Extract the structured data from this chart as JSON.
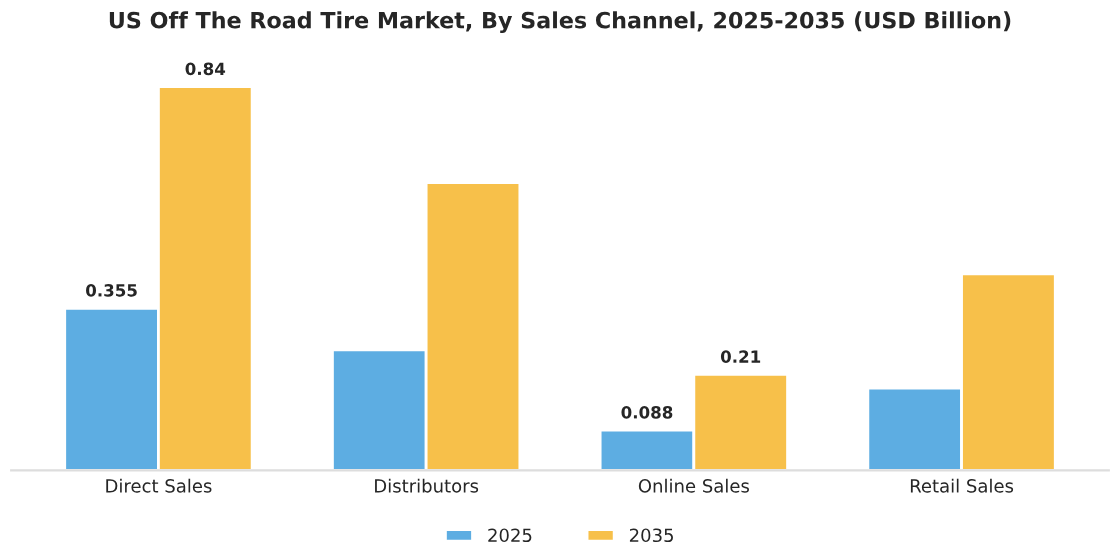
{
  "chart_data": {
    "type": "bar",
    "title": "US Off The Road Tire Market, By Sales Channel, 2025-2035 (USD Billion)",
    "categories": [
      "Direct Sales",
      "Distributors",
      "Online Sales",
      "Retail Sales"
    ],
    "series": [
      {
        "name": "2025",
        "color": "#5dade2",
        "values": [
          0.355,
          0.264,
          0.088,
          0.18
        ],
        "value_labels": [
          "0.355",
          null,
          "0.088",
          null
        ]
      },
      {
        "name": "2035",
        "color": "#f7c04a",
        "values": [
          0.84,
          0.63,
          0.21,
          0.43
        ],
        "value_labels": [
          "0.84",
          null,
          "0.21",
          null
        ]
      }
    ],
    "legend": "bottom",
    "grid": false
  }
}
